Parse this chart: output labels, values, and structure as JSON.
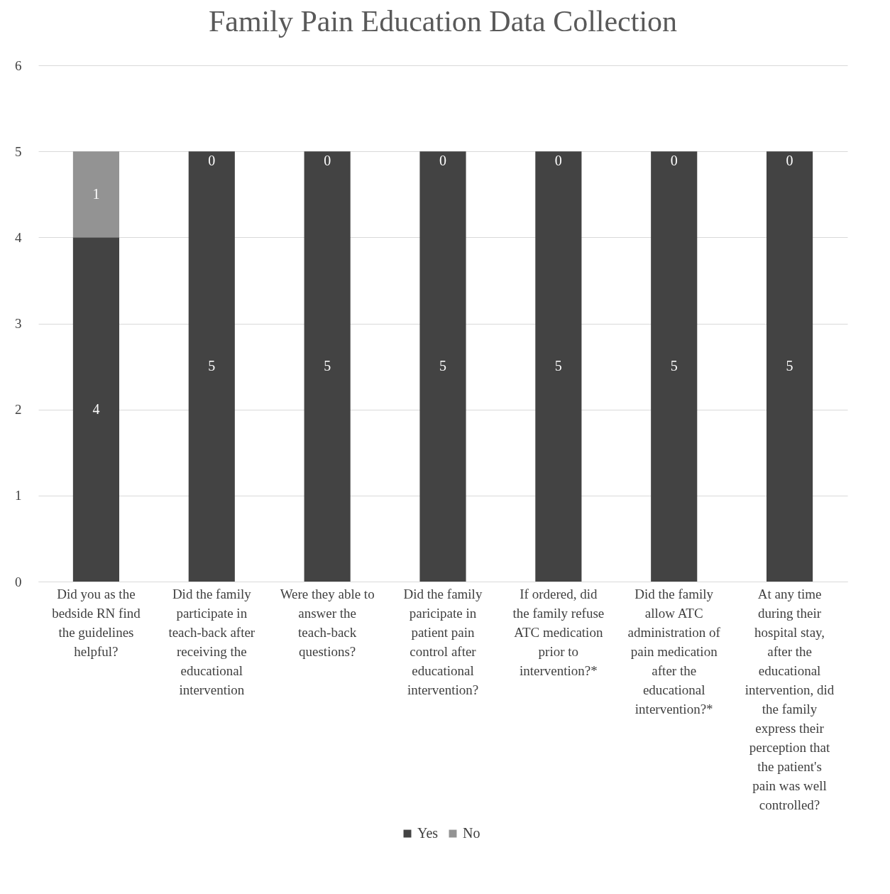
{
  "chart_data": {
    "type": "bar",
    "title": "Family Pain Education Data Collection",
    "stacked": true,
    "categories": [
      "Did you as the bedside RN find the guidelines helpful?",
      "Did the family participate in teach-back after receiving the educational intervention",
      "Were they able to answer the teach-back questions?",
      "Did the family paricipate in patient pain control after educational intervention?",
      "If ordered, did the family refuse ATC medication prior to intervention?*",
      "Did the family allow ATC administration of pain medication after the educational intervention?*",
      "At any time during their hospital stay, after the educational intervention, did the family express their perception that the patient's pain was well controlled?"
    ],
    "series": [
      {
        "name": "Yes",
        "color": "#434343",
        "values": [
          4,
          5,
          5,
          5,
          5,
          5,
          5
        ]
      },
      {
        "name": "No",
        "color": "#939393",
        "values": [
          1,
          0,
          0,
          0,
          0,
          0,
          0
        ]
      }
    ],
    "ylim": [
      0,
      6
    ],
    "yticks": [
      0,
      1,
      2,
      3,
      4,
      5,
      6
    ],
    "grid": "y",
    "legend": "bottom",
    "data_labels": true
  }
}
